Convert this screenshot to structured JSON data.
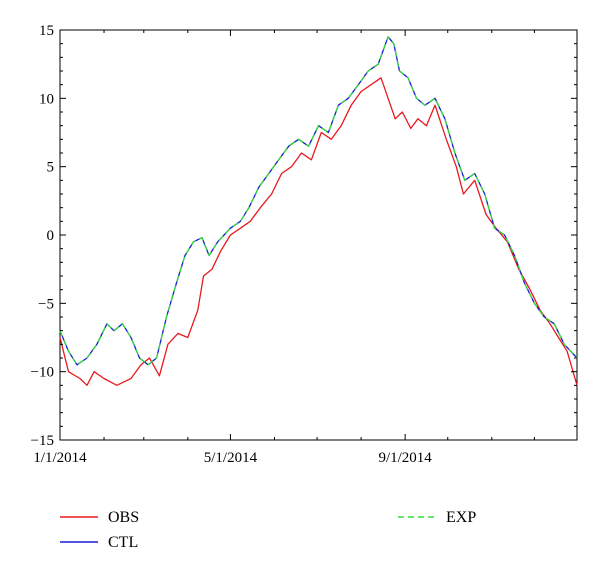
{
  "chart_data": {
    "type": "line",
    "x_axis": {
      "type": "date",
      "range": [
        "2014-01-01",
        "2014-12-31"
      ],
      "ticks": [
        {
          "date": "2014-01-01",
          "label": "1/1/2014"
        },
        {
          "date": "2014-05-01",
          "label": "5/1/2014"
        },
        {
          "date": "2014-09-01",
          "label": "9/1/2014"
        }
      ]
    },
    "y_axis": {
      "range": [
        -15,
        15
      ],
      "ticks": [
        15,
        10,
        5,
        0,
        -5,
        -10,
        -15
      ],
      "tick_labels": [
        "15",
        "10",
        "5",
        "0",
        "−5",
        "−10",
        "−15"
      ]
    },
    "grid": false,
    "legend_position": "bottom",
    "series": [
      {
        "name": "OBS",
        "color": "#e8191e",
        "style": "solid",
        "points": [
          [
            "2014-01-01",
            -7.5
          ],
          [
            "2014-01-07",
            -10.0
          ],
          [
            "2014-01-15",
            -10.5
          ],
          [
            "2014-01-20",
            -11.0
          ],
          [
            "2014-01-25",
            -10.0
          ],
          [
            "2014-02-01",
            -10.5
          ],
          [
            "2014-02-10",
            -11.0
          ],
          [
            "2014-02-20",
            -10.5
          ],
          [
            "2014-02-27",
            -9.5
          ],
          [
            "2014-03-05",
            -9.0
          ],
          [
            "2014-03-12",
            -10.3
          ],
          [
            "2014-03-18",
            -8.0
          ],
          [
            "2014-03-25",
            -7.2
          ],
          [
            "2014-04-01",
            -7.5
          ],
          [
            "2014-04-08",
            -5.5
          ],
          [
            "2014-04-12",
            -3.0
          ],
          [
            "2014-04-18",
            -2.5
          ],
          [
            "2014-04-24",
            -1.2
          ],
          [
            "2014-05-01",
            0.0
          ],
          [
            "2014-05-08",
            0.5
          ],
          [
            "2014-05-15",
            1.0
          ],
          [
            "2014-05-22",
            2.0
          ],
          [
            "2014-05-30",
            3.0
          ],
          [
            "2014-06-06",
            4.5
          ],
          [
            "2014-06-13",
            5.0
          ],
          [
            "2014-06-20",
            6.0
          ],
          [
            "2014-06-27",
            5.5
          ],
          [
            "2014-07-04",
            7.5
          ],
          [
            "2014-07-11",
            7.0
          ],
          [
            "2014-07-18",
            8.0
          ],
          [
            "2014-07-25",
            9.5
          ],
          [
            "2014-08-01",
            10.5
          ],
          [
            "2014-08-08",
            11.0
          ],
          [
            "2014-08-15",
            11.5
          ],
          [
            "2014-08-20",
            10.0
          ],
          [
            "2014-08-25",
            8.5
          ],
          [
            "2014-08-30",
            9.0
          ],
          [
            "2014-09-05",
            7.8
          ],
          [
            "2014-09-10",
            8.5
          ],
          [
            "2014-09-16",
            8.0
          ],
          [
            "2014-09-22",
            9.5
          ],
          [
            "2014-09-30",
            7.0
          ],
          [
            "2014-10-07",
            5.0
          ],
          [
            "2014-10-12",
            3.0
          ],
          [
            "2014-10-20",
            4.0
          ],
          [
            "2014-10-28",
            1.5
          ],
          [
            "2014-11-04",
            0.5
          ],
          [
            "2014-11-12",
            -0.5
          ],
          [
            "2014-11-20",
            -2.5
          ],
          [
            "2014-11-28",
            -4.0
          ],
          [
            "2014-12-05",
            -5.5
          ],
          [
            "2014-12-12",
            -6.5
          ],
          [
            "2014-12-18",
            -7.5
          ],
          [
            "2014-12-24",
            -8.5
          ],
          [
            "2014-12-31",
            -11.0
          ]
        ]
      },
      {
        "name": "CTL",
        "color": "#1a1adb",
        "style": "solid",
        "points": [
          [
            "2014-01-01",
            -7.0
          ],
          [
            "2014-01-07",
            -8.5
          ],
          [
            "2014-01-13",
            -9.5
          ],
          [
            "2014-01-20",
            -9.0
          ],
          [
            "2014-01-27",
            -8.0
          ],
          [
            "2014-02-03",
            -6.5
          ],
          [
            "2014-02-08",
            -7.0
          ],
          [
            "2014-02-14",
            -6.5
          ],
          [
            "2014-02-20",
            -7.5
          ],
          [
            "2014-02-26",
            -9.0
          ],
          [
            "2014-03-04",
            -9.5
          ],
          [
            "2014-03-10",
            -9.0
          ],
          [
            "2014-03-17",
            -6.0
          ],
          [
            "2014-03-24",
            -3.5
          ],
          [
            "2014-03-30",
            -1.5
          ],
          [
            "2014-04-05",
            -0.5
          ],
          [
            "2014-04-11",
            -0.2
          ],
          [
            "2014-04-16",
            -1.5
          ],
          [
            "2014-04-22",
            -0.5
          ],
          [
            "2014-05-01",
            0.5
          ],
          [
            "2014-05-08",
            1.0
          ],
          [
            "2014-05-14",
            2.0
          ],
          [
            "2014-05-21",
            3.5
          ],
          [
            "2014-05-28",
            4.5
          ],
          [
            "2014-06-04",
            5.5
          ],
          [
            "2014-06-11",
            6.5
          ],
          [
            "2014-06-18",
            7.0
          ],
          [
            "2014-06-25",
            6.5
          ],
          [
            "2014-07-02",
            8.0
          ],
          [
            "2014-07-09",
            7.5
          ],
          [
            "2014-07-16",
            9.5
          ],
          [
            "2014-07-23",
            10.0
          ],
          [
            "2014-07-30",
            11.0
          ],
          [
            "2014-08-06",
            12.0
          ],
          [
            "2014-08-13",
            12.5
          ],
          [
            "2014-08-20",
            14.5
          ],
          [
            "2014-08-24",
            14.0
          ],
          [
            "2014-08-28",
            12.0
          ],
          [
            "2014-09-03",
            11.5
          ],
          [
            "2014-09-09",
            10.0
          ],
          [
            "2014-09-15",
            9.5
          ],
          [
            "2014-09-22",
            10.0
          ],
          [
            "2014-09-29",
            8.5
          ],
          [
            "2014-10-06",
            6.0
          ],
          [
            "2014-10-13",
            4.0
          ],
          [
            "2014-10-20",
            4.5
          ],
          [
            "2014-10-27",
            3.0
          ],
          [
            "2014-11-03",
            0.5
          ],
          [
            "2014-11-10",
            0.0
          ],
          [
            "2014-11-17",
            -1.5
          ],
          [
            "2014-11-24",
            -3.5
          ],
          [
            "2014-12-01",
            -5.0
          ],
          [
            "2014-12-08",
            -6.0
          ],
          [
            "2014-12-15",
            -6.5
          ],
          [
            "2014-12-22",
            -8.0
          ],
          [
            "2014-12-31",
            -9.0
          ]
        ]
      },
      {
        "name": "EXP",
        "color": "#33dd33",
        "style": "dashed",
        "points": [
          [
            "2014-01-01",
            -7.0
          ],
          [
            "2014-01-07",
            -8.5
          ],
          [
            "2014-01-13",
            -9.5
          ],
          [
            "2014-01-20",
            -9.0
          ],
          [
            "2014-01-27",
            -8.0
          ],
          [
            "2014-02-03",
            -6.5
          ],
          [
            "2014-02-08",
            -7.0
          ],
          [
            "2014-02-14",
            -6.5
          ],
          [
            "2014-02-20",
            -7.5
          ],
          [
            "2014-02-26",
            -9.0
          ],
          [
            "2014-03-04",
            -9.5
          ],
          [
            "2014-03-10",
            -9.0
          ],
          [
            "2014-03-17",
            -6.0
          ],
          [
            "2014-03-24",
            -3.5
          ],
          [
            "2014-03-30",
            -1.5
          ],
          [
            "2014-04-05",
            -0.5
          ],
          [
            "2014-04-11",
            -0.2
          ],
          [
            "2014-04-16",
            -1.5
          ],
          [
            "2014-04-22",
            -0.5
          ],
          [
            "2014-05-01",
            0.5
          ],
          [
            "2014-05-08",
            1.0
          ],
          [
            "2014-05-14",
            2.0
          ],
          [
            "2014-05-21",
            3.5
          ],
          [
            "2014-05-28",
            4.5
          ],
          [
            "2014-06-04",
            5.5
          ],
          [
            "2014-06-11",
            6.5
          ],
          [
            "2014-06-18",
            7.0
          ],
          [
            "2014-06-25",
            6.5
          ],
          [
            "2014-07-02",
            8.0
          ],
          [
            "2014-07-09",
            7.5
          ],
          [
            "2014-07-16",
            9.5
          ],
          [
            "2014-07-23",
            10.0
          ],
          [
            "2014-07-30",
            11.0
          ],
          [
            "2014-08-06",
            12.0
          ],
          [
            "2014-08-13",
            12.5
          ],
          [
            "2014-08-20",
            14.5
          ],
          [
            "2014-08-24",
            14.0
          ],
          [
            "2014-08-28",
            12.0
          ],
          [
            "2014-09-03",
            11.5
          ],
          [
            "2014-09-09",
            10.0
          ],
          [
            "2014-09-15",
            9.5
          ],
          [
            "2014-09-22",
            10.0
          ],
          [
            "2014-09-29",
            8.5
          ],
          [
            "2014-10-06",
            6.0
          ],
          [
            "2014-10-13",
            4.0
          ],
          [
            "2014-10-20",
            4.5
          ],
          [
            "2014-10-27",
            3.0
          ],
          [
            "2014-11-03",
            0.5
          ],
          [
            "2014-11-10",
            0.0
          ],
          [
            "2014-11-17",
            -1.5
          ],
          [
            "2014-11-24",
            -3.5
          ],
          [
            "2014-12-01",
            -5.0
          ],
          [
            "2014-12-08",
            -6.0
          ],
          [
            "2014-12-15",
            -6.5
          ],
          [
            "2014-12-22",
            -8.0
          ],
          [
            "2014-12-31",
            -9.0
          ]
        ]
      }
    ]
  }
}
